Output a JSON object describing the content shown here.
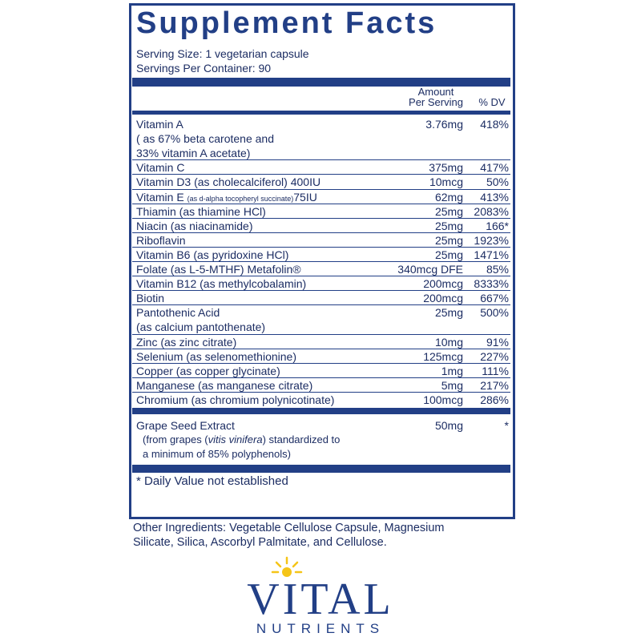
{
  "title": "Supplement Facts",
  "serving_size": "Serving Size: 1 vegetarian capsule",
  "servings_per_container": "Servings Per Container: 90",
  "header": {
    "amount": [
      "Amount",
      "Per Serving"
    ],
    "dv": "% DV"
  },
  "rows": [
    {
      "name": "Vitamin A",
      "amount": "3.76mg",
      "dv": "418%",
      "lines": [
        "( as 67% beta carotene and",
        "33% vitamin A acetate)"
      ]
    },
    {
      "name": "Vitamin C",
      "amount": "375mg",
      "dv": "417%"
    },
    {
      "name": "Vitamin D3 (as cholecalciferol) 400IU",
      "amount": "10mcg",
      "dv": "50%"
    },
    {
      "name": "Vitamin E",
      "note": "(as d-alpha tocopheryl succinate)",
      "suffix": "75IU",
      "amount": "62mg",
      "dv": "413%"
    },
    {
      "name": "Thiamin (as thiamine HCl)",
      "amount": "25mg",
      "dv": "2083%"
    },
    {
      "name": "Niacin (as niacinamide)",
      "amount": "25mg",
      "dv": "166*"
    },
    {
      "name": "Riboflavin",
      "amount": "25mg",
      "dv": "1923%"
    },
    {
      "name": "Vitamin B6 (as pyridoxine HCl)",
      "amount": "25mg",
      "dv": "1471%"
    },
    {
      "name": "Folate (as L-5-MTHF) Metafolin®",
      "amount": "340mcg DFE",
      "dv": "85%"
    },
    {
      "name": "Vitamin B12 (as methylcobalamin)",
      "amount": "200mcg",
      "dv": "8333%"
    },
    {
      "name": "Biotin",
      "amount": "200mcg",
      "dv": "667%"
    },
    {
      "name": "Pantothenic Acid",
      "amount": "25mg",
      "dv": "500%",
      "lines": [
        "(as calcium pantothenate)"
      ]
    },
    {
      "name": "Zinc (as zinc citrate)",
      "amount": "10mg",
      "dv": "91%"
    },
    {
      "name": "Selenium (as selenomethionine)",
      "amount": "125mcg",
      "dv": "227%"
    },
    {
      "name": "Copper (as copper glycinate)",
      "amount": "1mg",
      "dv": "111%"
    },
    {
      "name": "Manganese (as manganese citrate)",
      "amount": "5mg",
      "dv": "217%"
    },
    {
      "name": "Chromium (as chromium polynicotinate)",
      "amount": "100mcg",
      "dv": "286%"
    }
  ],
  "extract": {
    "name": "Grape Seed Extract",
    "amount": "50mg",
    "dv": "*",
    "note_parts": [
      "(from grapes (",
      "vitis vinifera",
      ") standardized to"
    ],
    "note_line2": "a minimum of 85% polyphenols)"
  },
  "footnote": "* Daily Value not established",
  "other_ingredients": [
    "Other Ingredients: Vegetable Cellulose Capsule, Magnesium",
    "Silicate, Silica, Ascorbyl Palmitate, and Cellulose."
  ],
  "logo": {
    "brand": "VITAL",
    "sub": "NUTRIENTS"
  }
}
